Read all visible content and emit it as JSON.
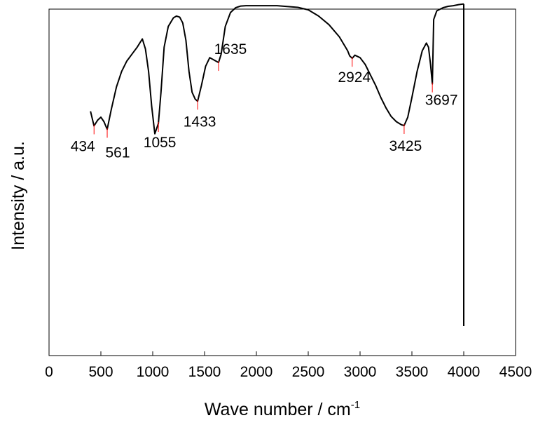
{
  "chart_data": {
    "type": "line",
    "xlabel": "Wave number / cm",
    "xlabel_superscript": "-1",
    "ylabel": "Intensity / a.u.",
    "xlim": [
      0,
      4500
    ],
    "ylim": [
      0,
      100
    ],
    "x_ticks": [
      0,
      500,
      1000,
      1500,
      2000,
      2500,
      3000,
      3500,
      4000,
      4500
    ],
    "x_tick_labels": [
      "0",
      "500",
      "1000",
      "1500",
      "2000",
      "2500",
      "3000",
      "3500",
      "4000",
      "4500"
    ],
    "y_ticks_shown": false,
    "grid": false,
    "legend": "none",
    "line_color": "#000000",
    "marker_color": "#ff0000",
    "series": [
      {
        "x": [
          400,
          434,
          470,
          500,
          530,
          561,
          600,
          650,
          700,
          750,
          800,
          850,
          900,
          930,
          960,
          990,
          1020,
          1055,
          1080,
          1110,
          1150,
          1200,
          1230,
          1260,
          1290,
          1320,
          1350,
          1380,
          1410,
          1433,
          1470,
          1510,
          1550,
          1580,
          1610,
          1635,
          1660,
          1700,
          1750,
          1800,
          1850,
          1900,
          2000,
          2200,
          2400,
          2500,
          2600,
          2700,
          2800,
          2850,
          2880,
          2900,
          2924,
          2950,
          3000,
          3050,
          3100,
          3150,
          3200,
          3250,
          3300,
          3350,
          3400,
          3425,
          3460,
          3500,
          3550,
          3600,
          3640,
          3660,
          3680,
          3697,
          3710,
          3740,
          3800,
          3850,
          3900,
          3950,
          4000
        ],
        "y": [
          70.5,
          66.3,
          68.0,
          68.8,
          67.5,
          65.3,
          71.0,
          77.5,
          82.0,
          85.0,
          87.0,
          89.0,
          91.4,
          88.5,
          82.0,
          72.0,
          64.0,
          67.0,
          76.0,
          89.0,
          95.0,
          97.5,
          98.0,
          97.7,
          96.0,
          91.0,
          82.0,
          76.0,
          74.0,
          73.4,
          78.0,
          83.5,
          86.0,
          85.5,
          85.0,
          84.6,
          87.0,
          95.0,
          99.0,
          100.4,
          100.9,
          101.0,
          101.0,
          101.0,
          100.5,
          99.8,
          98.0,
          95.5,
          92.0,
          89.5,
          88.0,
          86.5,
          85.8,
          86.7,
          86.0,
          84.0,
          81.0,
          78.0,
          74.5,
          71.5,
          69.0,
          67.5,
          66.6,
          66.4,
          68.8,
          74.5,
          82.0,
          88.0,
          90.2,
          89.0,
          84.0,
          78.4,
          97.0,
          99.5,
          100.4,
          100.8,
          101.0,
          101.3,
          101.5
        ]
      }
    ],
    "peaks": [
      {
        "x": 434,
        "y": 66.3,
        "label": "434"
      },
      {
        "x": 561,
        "y": 65.3,
        "label": "561"
      },
      {
        "x": 1055,
        "y": 67.0,
        "label": "1055"
      },
      {
        "x": 1433,
        "y": 73.4,
        "label": "1433"
      },
      {
        "x": 1635,
        "y": 84.6,
        "label": "1635"
      },
      {
        "x": 2924,
        "y": 85.8,
        "label": "2924"
      },
      {
        "x": 3425,
        "y": 66.4,
        "label": "3425"
      },
      {
        "x": 3697,
        "y": 78.4,
        "label": "3697"
      }
    ],
    "terminal_drop": {
      "x": 4000,
      "y_from": 101.5,
      "y_to": 8.5
    }
  }
}
